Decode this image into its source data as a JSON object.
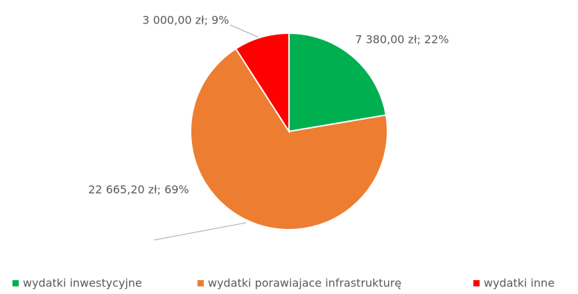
{
  "chart_data": {
    "type": "pie",
    "categories": [
      "wydatki inwestycyjne",
      "wydatki porawiajace infrastrukturę",
      "wydatki inne"
    ],
    "values": [
      7380,
      22665.2,
      3000
    ],
    "value_labels": [
      "7 380,00 zł; 22%",
      "22 665,20 zł; 69%",
      "3 000,00 zł; 9%"
    ],
    "colors": [
      "#00b050",
      "#ed7d31",
      "#ff0000"
    ],
    "legend": "bottom"
  }
}
